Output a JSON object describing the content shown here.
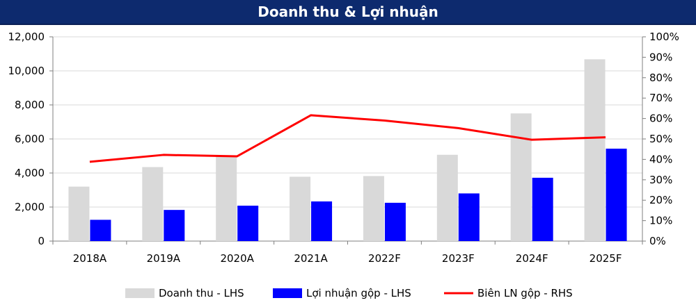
{
  "header": {
    "title": "Doanh thu & Lợi nhuận"
  },
  "colors": {
    "banner_bg": "#0d2a6e",
    "revenue": "#d9d9d9",
    "gross_profit": "#0000ff",
    "margin": "#ff0000"
  },
  "chart_data": {
    "type": "bar",
    "title": "Doanh thu & Lợi nhuận",
    "categories": [
      "2018A",
      "2019A",
      "2020A",
      "2021A",
      "2022F",
      "2023F",
      "2024F",
      "2025F"
    ],
    "y_left": {
      "ticks": [
        "0",
        "2,000",
        "4,000",
        "6,000",
        "8,000",
        "10,000",
        "12,000"
      ],
      "lim": [
        0,
        12000
      ]
    },
    "y_right": {
      "ticks": [
        "0%",
        "10%",
        "20%",
        "30%",
        "40%",
        "50%",
        "60%",
        "70%",
        "80%",
        "90%",
        "100%"
      ],
      "lim": [
        0,
        100
      ]
    },
    "series": [
      {
        "name": "Doanh thu - LHS",
        "kind": "bar",
        "axis": "left",
        "values": [
          3200,
          4350,
          5000,
          3780,
          3820,
          5070,
          7500,
          10680
        ]
      },
      {
        "name": "Lợi nhuận gộp - LHS",
        "kind": "bar",
        "axis": "left",
        "values": [
          1250,
          1830,
          2080,
          2330,
          2250,
          2800,
          3720,
          5430
        ]
      },
      {
        "name": "Biên LN gộp - RHS",
        "kind": "line",
        "axis": "right",
        "values": [
          38.8,
          42.2,
          41.5,
          61.6,
          59,
          55.3,
          49.6,
          50.8
        ]
      }
    ],
    "grid": "horizontal",
    "legend_position": "bottom"
  }
}
